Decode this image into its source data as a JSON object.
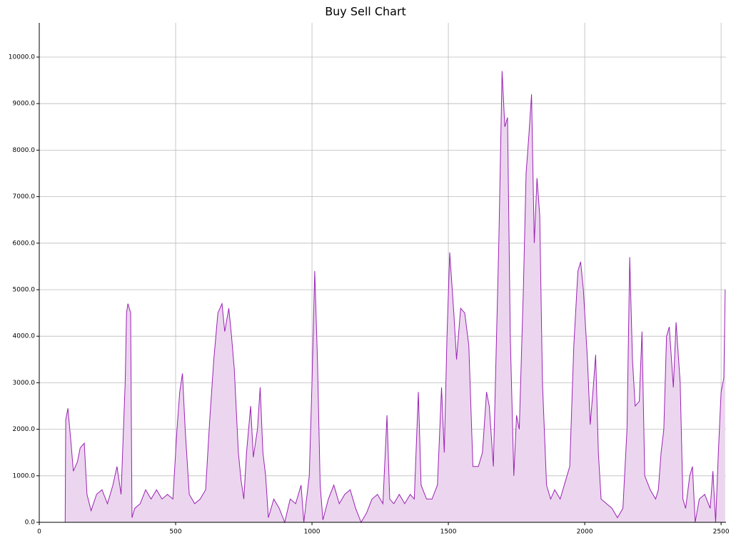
{
  "chart_data": {
    "type": "area",
    "title": "Buy Sell Chart",
    "color": "#9a22b4",
    "fill": "#ecd6ef",
    "grid": true,
    "xlim": [
      0,
      2518
    ],
    "xticks": [
      0,
      500,
      1000,
      1500,
      2000,
      2500
    ],
    "ylim": [
      0,
      10736
    ],
    "yticks": [
      {
        "value": 0,
        "label": "0.0"
      },
      {
        "value": 1000,
        "label": "1000.0"
      },
      {
        "value": 2000,
        "label": "2000.0"
      },
      {
        "value": 3000,
        "label": "3000.0"
      },
      {
        "value": 4000,
        "label": "4000.0"
      },
      {
        "value": 5000,
        "label": "5000.0"
      },
      {
        "value": 6000,
        "label": "6000.0"
      },
      {
        "value": 7000,
        "label": "7000.0"
      },
      {
        "value": 8000,
        "label": "8000.0"
      },
      {
        "value": 9000,
        "label": "9000.0"
      },
      {
        "value": 10000,
        "label": "10000.0"
      }
    ],
    "x": [
      0,
      95,
      97,
      105,
      115,
      125,
      140,
      150,
      165,
      175,
      190,
      210,
      230,
      250,
      270,
      285,
      300,
      315,
      320,
      325,
      335,
      340,
      350,
      370,
      390,
      410,
      430,
      450,
      470,
      490,
      505,
      515,
      525,
      535,
      550,
      570,
      590,
      610,
      625,
      640,
      655,
      670,
      680,
      695,
      705,
      715,
      730,
      740,
      750,
      760,
      775,
      785,
      800,
      810,
      820,
      830,
      840,
      860,
      880,
      900,
      920,
      940,
      960,
      970,
      990,
      1000,
      1010,
      1020,
      1030,
      1040,
      1060,
      1080,
      1100,
      1120,
      1140,
      1160,
      1180,
      1200,
      1220,
      1240,
      1260,
      1275,
      1285,
      1300,
      1320,
      1340,
      1360,
      1375,
      1390,
      1400,
      1420,
      1440,
      1460,
      1475,
      1485,
      1495,
      1505,
      1520,
      1530,
      1545,
      1560,
      1575,
      1590,
      1610,
      1625,
      1640,
      1650,
      1665,
      1685,
      1697,
      1707,
      1717,
      1727,
      1740,
      1750,
      1760,
      1775,
      1785,
      1795,
      1805,
      1815,
      1825,
      1835,
      1845,
      1860,
      1875,
      1890,
      1910,
      1930,
      1945,
      1960,
      1975,
      1985,
      1995,
      2010,
      2020,
      2030,
      2040,
      2050,
      2060,
      2080,
      2100,
      2120,
      2140,
      2155,
      2165,
      2175,
      2185,
      2200,
      2210,
      2220,
      2240,
      2260,
      2270,
      2280,
      2290,
      2300,
      2310,
      2325,
      2335,
      2350,
      2360,
      2370,
      2385,
      2395,
      2405,
      2420,
      2440,
      2460,
      2470,
      2480,
      2490,
      2500,
      2510,
      2515
    ],
    "values": [
      0,
      0,
      2200,
      2450,
      1800,
      1100,
      1300,
      1600,
      1700,
      600,
      250,
      600,
      700,
      400,
      800,
      1200,
      600,
      3000,
      4500,
      4700,
      4500,
      100,
      300,
      400,
      700,
      500,
      700,
      500,
      600,
      500,
      2000,
      2800,
      3200,
      2000,
      600,
      400,
      500,
      700,
      2200,
      3500,
      4500,
      4700,
      4100,
      4600,
      4000,
      3300,
      1500,
      900,
      500,
      1500,
      2500,
      1400,
      2000,
      2900,
      1500,
      1000,
      100,
      500,
      300,
      0,
      500,
      400,
      800,
      0,
      1000,
      3000,
      5400,
      3500,
      800,
      50,
      500,
      800,
      400,
      600,
      700,
      300,
      0,
      200,
      500,
      600,
      400,
      2300,
      500,
      400,
      600,
      400,
      600,
      500,
      2800,
      800,
      500,
      500,
      800,
      2900,
      1500,
      4000,
      5800,
      4500,
      3500,
      4600,
      4500,
      3800,
      1200,
      1200,
      1500,
      2800,
      2500,
      1200,
      6000,
      9700,
      8500,
      8700,
      4000,
      1000,
      2300,
      2000,
      5000,
      7500,
      8300,
      9200,
      6000,
      7400,
      6600,
      3000,
      800,
      500,
      700,
      500,
      900,
      1200,
      3800,
      5400,
      5600,
      5000,
      3500,
      2100,
      2800,
      3600,
      1500,
      500,
      400,
      300,
      100,
      300,
      2000,
      5700,
      3500,
      2500,
      2600,
      4100,
      1000,
      700,
      500,
      700,
      1500,
      2000,
      4000,
      4200,
      2900,
      4300,
      3000,
      500,
      300,
      1000,
      1200,
      0,
      500,
      600,
      300,
      1100,
      0,
      1500,
      2800,
      3100,
      5000
    ]
  }
}
